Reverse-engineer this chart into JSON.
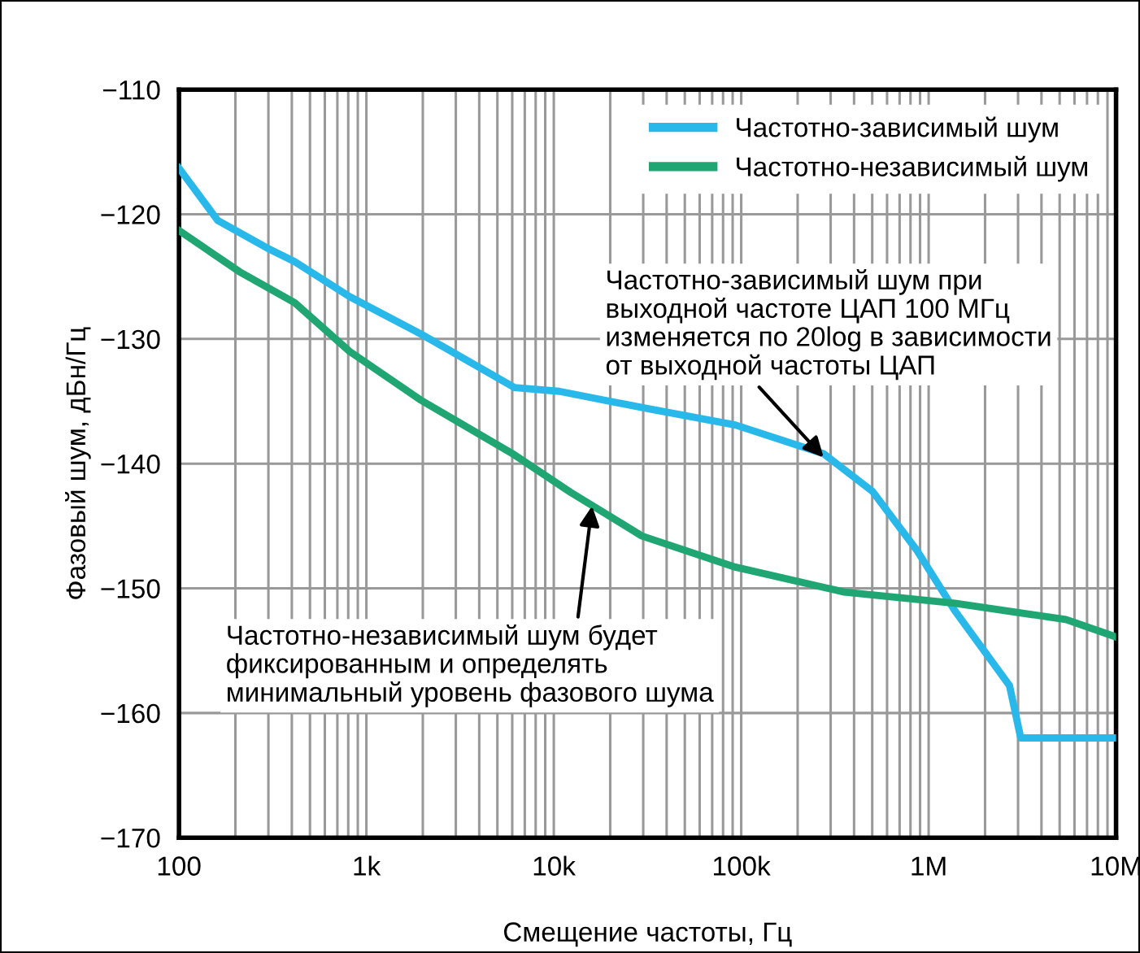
{
  "chart_data": {
    "type": "line",
    "xlabel": "Смещение частоты, Гц",
    "ylabel": "Фазовый шум, дБн/Гц",
    "log": "x",
    "grid": true,
    "legend": "top right",
    "marker": "none",
    "line_style": "solid",
    "xlim": [
      100,
      10000000
    ],
    "ylim": [
      -170,
      -110
    ],
    "xticks": [
      100,
      {
        "value": 1000,
        "label": "1k"
      },
      {
        "value": 10000,
        "label": "10k"
      },
      {
        "value": 100000,
        "label": "100k"
      },
      {
        "value": 1000000,
        "label": "1M"
      },
      {
        "value": 10000000,
        "label": "10M"
      }
    ],
    "yticks": [
      -170,
      -160,
      -150,
      -140,
      -130,
      -120,
      -110
    ],
    "series": [
      {
        "name": "Частотно-зависимый шум",
        "color": "#29b8ea",
        "x": [
          100,
          161,
          295,
          414,
          813,
          1950,
          6170,
          10700,
          29500,
          93000,
          275000,
          500000,
          870000,
          1380000,
          2700000,
          3100000,
          10000000
        ],
        "values": [
          -116.3,
          -120.5,
          -122.7,
          -123.8,
          -126.6,
          -129.6,
          -133.9,
          -134.2,
          -135.5,
          -136.9,
          -139.2,
          -142.2,
          -147,
          -151.8,
          -157.8,
          -162,
          -162
        ]
      },
      {
        "name": "Частотно-независимый шум",
        "color": "#1fa673",
        "x": [
          100,
          210,
          415,
          813,
          1950,
          6170,
          12300,
          29500,
          93000,
          355000,
          1380000,
          5400000,
          10000000
        ],
        "values": [
          -121.3,
          -124.6,
          -127.1,
          -131,
          -134.9,
          -139.3,
          -142.3,
          -145.8,
          -148.3,
          -150.3,
          -151.2,
          -152.5,
          -153.9
        ]
      }
    ],
    "annotations": [
      {
        "text": "Частотно-зависимый шум при\nвыходной частоте ЦАП 100 МГц\nизменяется по 20log в зависимости\nот выходной частоты ЦАП",
        "x": 275000,
        "y": -139.5
      },
      {
        "text": "Частотно-независимый шум будет\nфиксированным и определять\nминимальный уровень фазового шума",
        "x": 16000,
        "y": -143.4
      }
    ]
  }
}
